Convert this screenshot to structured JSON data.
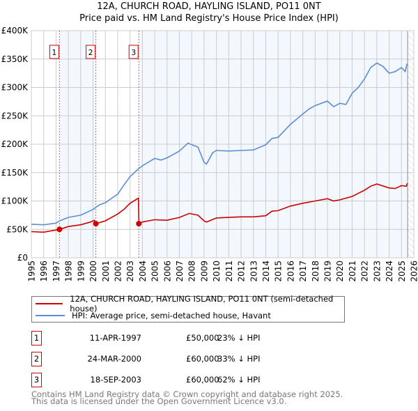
{
  "chart_data": {
    "type": "line",
    "title": "12A, CHURCH ROAD, HAYLING ISLAND, PO11 0NT",
    "subtitle": "Price paid vs. HM Land Registry's House Price Index (HPI)",
    "xlim": [
      1995,
      2026
    ],
    "ylim": [
      0,
      400000
    ],
    "x_ticks": [
      "1995",
      "1996",
      "1997",
      "1998",
      "1999",
      "2000",
      "2001",
      "2002",
      "2003",
      "2004",
      "2005",
      "2006",
      "2007",
      "2008",
      "2009",
      "2010",
      "2011",
      "2012",
      "2013",
      "2014",
      "2015",
      "2016",
      "2017",
      "2018",
      "2019",
      "2020",
      "2021",
      "2022",
      "2023",
      "2024",
      "2025",
      "2026"
    ],
    "y_ticks": [
      {
        "v": 0,
        "label": "£0"
      },
      {
        "v": 50000,
        "label": "£50K"
      },
      {
        "v": 100000,
        "label": "£100K"
      },
      {
        "v": 150000,
        "label": "£150K"
      },
      {
        "v": 200000,
        "label": "£200K"
      },
      {
        "v": 250000,
        "label": "£250K"
      },
      {
        "v": 300000,
        "label": "£300K"
      },
      {
        "v": 350000,
        "label": "£350K"
      },
      {
        "v": 400000,
        "label": "£400K"
      }
    ],
    "grid": true,
    "data_end": 2025.5,
    "series": [
      {
        "name": "12A, CHURCH ROAD, HAYLING ISLAND, PO11 0NT (semi-detached house)",
        "color": "#cc0000",
        "x": [
          1995,
          1996,
          1996.5,
          1997.28,
          1998,
          1999,
          1999.8,
          2000.1,
          2000.23,
          2001,
          2002,
          2002.5,
          2003,
          2003.68,
          2003.72,
          2004,
          2005,
          2006,
          2007,
          2007.8,
          2008.5,
          2009,
          2009.2,
          2010,
          2011,
          2012,
          2013,
          2014,
          2014.5,
          2015,
          2016,
          2017,
          2018,
          2019,
          2019.5,
          2020,
          2021,
          2022,
          2022.5,
          2023,
          2024,
          2024.5,
          2025,
          2025.4,
          2025.45
        ],
        "y": [
          46000,
          45000,
          47000,
          50000,
          55000,
          58000,
          63000,
          66000,
          60000,
          65000,
          77000,
          85000,
          96000,
          105000,
          60000,
          63000,
          67000,
          66000,
          71000,
          78000,
          75000,
          65000,
          63000,
          70000,
          71000,
          72000,
          72000,
          74000,
          82000,
          83000,
          91000,
          96000,
          100000,
          104000,
          100000,
          102000,
          108000,
          119000,
          126000,
          130000,
          123000,
          122000,
          127000,
          126000,
          131000
        ]
      },
      {
        "name": "HPI: Average price, semi-detached house, Havant",
        "color": "#5b8ed6",
        "x": [
          1995,
          1996,
          1997,
          1997.3,
          1998,
          1999,
          2000,
          2000.5,
          2001,
          2002,
          2002.5,
          2003,
          2003.7,
          2004,
          2005,
          2005.5,
          2006,
          2007,
          2007.7,
          2008,
          2008.5,
          2009,
          2009.2,
          2009.7,
          2010,
          2011,
          2012,
          2013,
          2014,
          2014.5,
          2015,
          2016,
          2017,
          2017.5,
          2018,
          2019,
          2019.5,
          2020,
          2020.5,
          2021,
          2021.5,
          2022,
          2022.5,
          2023,
          2023.5,
          2024,
          2024.5,
          2025,
          2025.3,
          2025.45
        ],
        "y": [
          59000,
          58000,
          61000,
          65000,
          71000,
          75000,
          85000,
          93000,
          97000,
          112000,
          128000,
          143000,
          157000,
          162000,
          175000,
          172000,
          176000,
          188000,
          202000,
          199000,
          195000,
          168000,
          165000,
          185000,
          189000,
          188000,
          189000,
          190000,
          199000,
          210000,
          212000,
          235000,
          253000,
          262000,
          268000,
          276000,
          266000,
          272000,
          270000,
          290000,
          300000,
          315000,
          335000,
          343000,
          337000,
          325000,
          328000,
          335000,
          328000,
          342000
        ]
      }
    ],
    "sales": [
      {
        "label": "1",
        "x": 1997.28,
        "y": 50000
      },
      {
        "label": "2",
        "x": 2000.23,
        "y": 60000
      },
      {
        "label": "3",
        "x": 2003.71,
        "y": 60000
      }
    ]
  },
  "header": {
    "title": "12A, CHURCH ROAD, HAYLING ISLAND, PO11 0NT",
    "subtitle": "Price paid vs. HM Land Registry's House Price Index (HPI)"
  },
  "legend": {
    "property": "12A, CHURCH ROAD, HAYLING ISLAND, PO11 0NT (semi-detached house)",
    "hpi": "HPI: Average price, semi-detached house, Havant"
  },
  "transactions": [
    {
      "num": "1",
      "date": "11-APR-1997",
      "price": "£50,000",
      "hpi": "23% ↓ HPI"
    },
    {
      "num": "2",
      "date": "24-MAR-2000",
      "price": "£60,000",
      "hpi": "33% ↓ HPI"
    },
    {
      "num": "3",
      "date": "18-SEP-2003",
      "price": "£60,000",
      "hpi": "62% ↓ HPI"
    }
  ],
  "footer": {
    "line1": "Contains HM Land Registry data © Crown copyright and database right 2025.",
    "line2": "This data is licensed under the Open Government Licence v3.0."
  }
}
